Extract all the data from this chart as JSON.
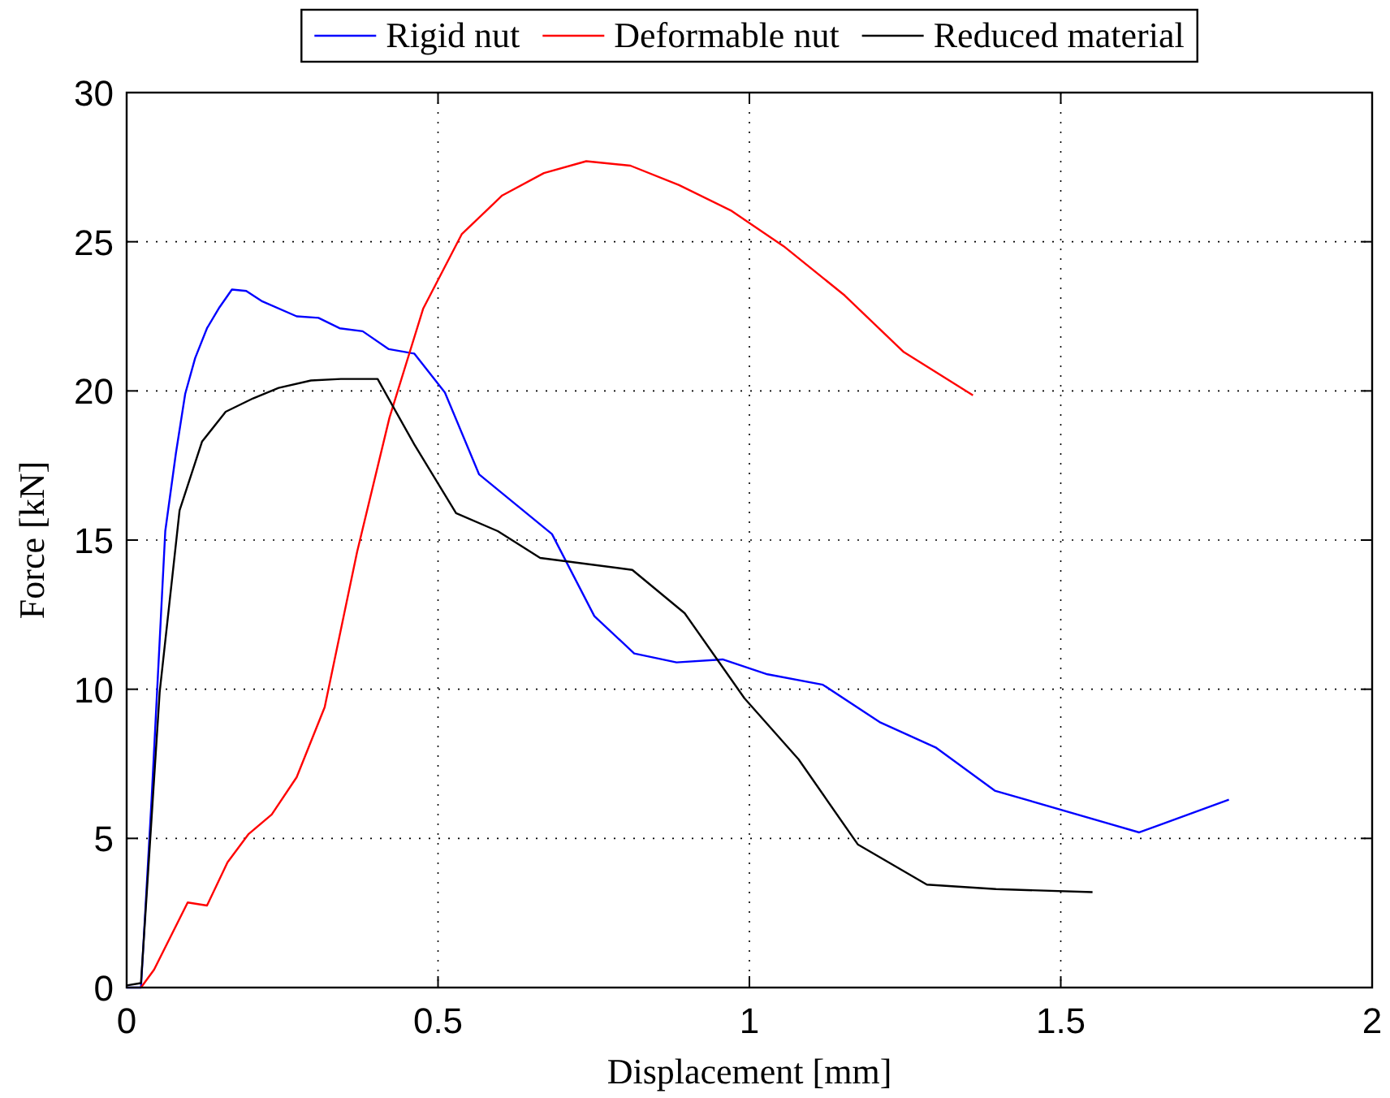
{
  "chart_data": {
    "type": "line",
    "xlabel": "Displacement [mm]",
    "ylabel": "Force [kN]",
    "xlim": [
      0,
      2
    ],
    "ylim": [
      0,
      30
    ],
    "xticks": [
      0,
      0.5,
      1,
      1.5,
      2
    ],
    "yticks": [
      0,
      5,
      10,
      15,
      20,
      25,
      30
    ],
    "grid": true,
    "legend": "top",
    "line_style": "solid",
    "marker": "none",
    "series": [
      {
        "name": "Rigid nut",
        "color": "#0000ff",
        "x": [
          0,
          0.023,
          0.04,
          0.062,
          0.079,
          0.094,
          0.11,
          0.129,
          0.149,
          0.169,
          0.192,
          0.218,
          0.273,
          0.308,
          0.342,
          0.379,
          0.421,
          0.462,
          0.511,
          0.566,
          0.683,
          0.751,
          0.815,
          0.883,
          0.957,
          1.029,
          1.118,
          1.209,
          1.299,
          1.394,
          1.626,
          1.77
        ],
        "values": [
          0,
          0,
          6.3,
          15.3,
          17.9,
          19.9,
          21.1,
          22.1,
          22.8,
          23.4,
          23.35,
          23,
          22.5,
          22.45,
          22.1,
          22,
          21.4,
          21.25,
          19.95,
          17.2,
          15.2,
          12.45,
          11.2,
          10.9,
          11,
          10.5,
          10.15,
          8.9,
          8.05,
          6.6,
          5.2,
          6.3
        ]
      },
      {
        "name": "Deformable nut",
        "color": "#ff0000",
        "x": [
          0.023,
          0.044,
          0.098,
          0.129,
          0.162,
          0.196,
          0.233,
          0.273,
          0.318,
          0.37,
          0.422,
          0.476,
          0.538,
          0.603,
          0.67,
          0.738,
          0.809,
          0.887,
          0.97,
          1.055,
          1.153,
          1.248,
          1.359
        ],
        "values": [
          0,
          0.6,
          2.85,
          2.75,
          4.2,
          5.15,
          5.8,
          7.05,
          9.4,
          14.6,
          19.1,
          22.75,
          25.25,
          26.55,
          27.3,
          27.7,
          27.55,
          26.9,
          26.05,
          24.85,
          23.2,
          21.3,
          19.85
        ]
      },
      {
        "name": "Reduced material",
        "color": "#000000",
        "x": [
          0,
          0.023,
          0.053,
          0.085,
          0.121,
          0.159,
          0.203,
          0.244,
          0.296,
          0.344,
          0.403,
          0.462,
          0.529,
          0.596,
          0.664,
          0.812,
          0.896,
          0.992,
          1.079,
          1.174,
          1.285,
          1.396,
          1.551
        ],
        "values": [
          0.07,
          0.15,
          9.9,
          16,
          18.3,
          19.3,
          19.75,
          20.1,
          20.35,
          20.4,
          20.4,
          18.2,
          15.9,
          15.3,
          14.4,
          14,
          12.55,
          9.7,
          7.65,
          4.8,
          3.45,
          3.3,
          3.2
        ]
      }
    ]
  }
}
